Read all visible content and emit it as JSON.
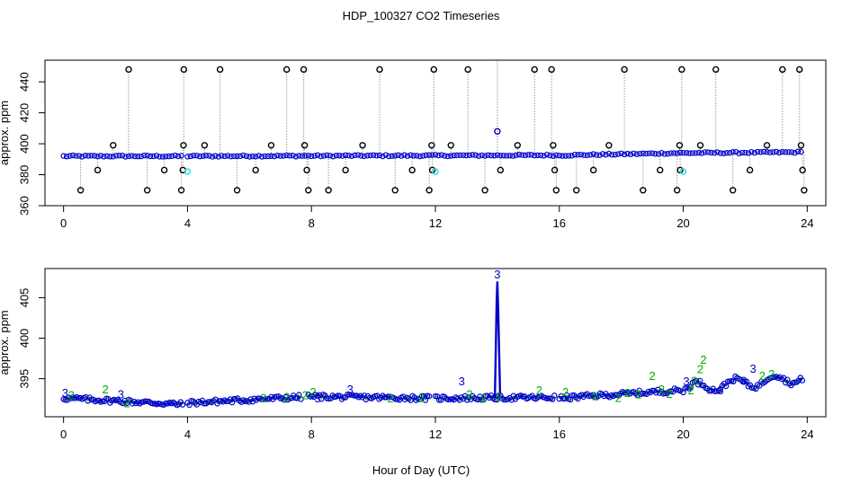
{
  "figure": {
    "title": "HDP_100327  CO2 Timeseries",
    "xlabel": "Hour of Day (UTC)"
  },
  "colors": {
    "axis": "#000000",
    "primary": "#0000cc",
    "outlier": "#000000",
    "cyan": "#22dddd",
    "green": "#00aa00",
    "gray": "#9a9a9a"
  },
  "chart_data": [
    {
      "id": "top",
      "type": "scatter",
      "title": "",
      "xlabel": "",
      "ylabel": "approx. ppm",
      "xlim": [
        -0.6,
        24.6
      ],
      "ylim": [
        360,
        454
      ],
      "xticks": [
        0,
        4,
        8,
        12,
        16,
        20,
        24
      ],
      "yticks": [
        360,
        380,
        400,
        420,
        440
      ],
      "series": [
        {
          "name": "baseline",
          "color": "blue",
          "segments": [
            {
              "start": 0.0,
              "end": 3.85,
              "value": 392,
              "slope": 0
            },
            {
              "start": 4.0,
              "end": 15.9,
              "value": 392,
              "slope": 0.05
            },
            {
              "start": 16.0,
              "end": 19.9,
              "value": 392.5,
              "slope": 0.4
            },
            {
              "start": 20.0,
              "end": 23.85,
              "value": 394,
              "slope": 0.15
            }
          ]
        },
        {
          "name": "outliers",
          "color": "black",
          "points": [
            [
              0.55,
              370
            ],
            [
              1.1,
              383
            ],
            [
              1.6,
              399
            ],
            [
              2.1,
              448
            ],
            [
              2.7,
              370
            ],
            [
              3.25,
              383
            ],
            [
              3.8,
              370
            ],
            [
              3.85,
              383
            ],
            [
              3.87,
              399
            ],
            [
              3.88,
              448
            ],
            [
              4.55,
              399
            ],
            [
              5.05,
              448
            ],
            [
              5.6,
              370
            ],
            [
              6.2,
              383
            ],
            [
              6.7,
              399
            ],
            [
              7.2,
              448
            ],
            [
              7.75,
              448
            ],
            [
              7.78,
              399
            ],
            [
              7.85,
              383
            ],
            [
              7.9,
              370
            ],
            [
              8.55,
              370
            ],
            [
              9.1,
              383
            ],
            [
              9.65,
              399
            ],
            [
              10.2,
              448
            ],
            [
              10.7,
              370
            ],
            [
              11.25,
              383
            ],
            [
              11.8,
              370
            ],
            [
              11.88,
              399
            ],
            [
              11.9,
              383
            ],
            [
              11.95,
              448
            ],
            [
              12.5,
              399
            ],
            [
              13.05,
              448
            ],
            [
              13.6,
              370
            ],
            [
              14.1,
              383
            ],
            [
              14.65,
              399
            ],
            [
              15.2,
              448
            ],
            [
              15.75,
              448
            ],
            [
              15.8,
              399
            ],
            [
              15.85,
              383
            ],
            [
              15.9,
              370
            ],
            [
              16.55,
              370
            ],
            [
              17.1,
              383
            ],
            [
              17.6,
              399
            ],
            [
              18.1,
              448
            ],
            [
              18.7,
              370
            ],
            [
              19.25,
              383
            ],
            [
              19.8,
              370
            ],
            [
              19.88,
              399
            ],
            [
              19.9,
              383
            ],
            [
              19.95,
              448
            ],
            [
              20.55,
              399
            ],
            [
              21.05,
              448
            ],
            [
              21.6,
              370
            ],
            [
              22.15,
              383
            ],
            [
              22.7,
              399
            ],
            [
              23.2,
              448
            ],
            [
              23.75,
              448
            ],
            [
              23.8,
              399
            ],
            [
              23.85,
              383
            ],
            [
              23.9,
              370
            ]
          ]
        },
        {
          "name": "cyan",
          "color": "cyan",
          "points": [
            [
              4.0,
              382
            ],
            [
              12.0,
              382
            ],
            [
              20.0,
              382
            ]
          ]
        },
        {
          "name": "spike",
          "color": "blue",
          "points": [
            [
              14.0,
              408
            ]
          ]
        }
      ]
    },
    {
      "id": "bottom",
      "type": "scatter",
      "title": "",
      "xlabel": "Hour of Day (UTC)",
      "ylabel": "approx. ppm",
      "xlim": [
        -0.6,
        24.6
      ],
      "ylim": [
        390.3,
        408.6
      ],
      "xticks": [
        0,
        4,
        8,
        12,
        16,
        20,
        24
      ],
      "yticks": [
        395,
        400,
        405
      ],
      "series": [
        {
          "name": "co2",
          "color": "blue",
          "segments": [
            {
              "start": 0.0,
              "end": 3.85,
              "value": 392.6,
              "slope": -0.2
            },
            {
              "start": 4.0,
              "end": 7.7,
              "value": 392.0,
              "slope": 0.2
            },
            {
              "start": 7.9,
              "end": 11.85,
              "value": 392.8,
              "slope": -0.05
            },
            {
              "start": 12.0,
              "end": 15.85,
              "value": 392.6,
              "slope": 0.02
            },
            {
              "start": 16.0,
              "end": 19.9,
              "value": 392.6,
              "slope": 0.25
            },
            {
              "start": 20.0,
              "end": 23.85,
              "value": 393.8,
              "slope": 0.35
            }
          ],
          "spike": {
            "x": 14.0,
            "value": 407.0
          }
        },
        {
          "name": "flag labels",
          "points": [
            {
              "x": 0.05,
              "y": 393.2,
              "text": "3",
              "color": "blue"
            },
            {
              "x": 0.25,
              "y": 392.9,
              "text": "2",
              "color": "green"
            },
            {
              "x": 1.35,
              "y": 393.6,
              "text": "2",
              "color": "green"
            },
            {
              "x": 1.85,
              "y": 393.0,
              "text": "3",
              "color": "blue"
            },
            {
              "x": 2.05,
              "y": 391.9,
              "text": "2",
              "color": "green"
            },
            {
              "x": 6.45,
              "y": 392.6,
              "text": "2",
              "color": "green"
            },
            {
              "x": 7.2,
              "y": 392.7,
              "text": "2",
              "color": "green"
            },
            {
              "x": 7.8,
              "y": 392.9,
              "text": "2",
              "color": "green"
            },
            {
              "x": 8.05,
              "y": 393.3,
              "text": "2",
              "color": "green"
            },
            {
              "x": 8.2,
              "y": 392.5,
              "text": "3",
              "color": "blue"
            },
            {
              "x": 9.25,
              "y": 393.6,
              "text": "3",
              "color": "blue"
            },
            {
              "x": 10.55,
              "y": 392.5,
              "text": "2",
              "color": "green"
            },
            {
              "x": 11.55,
              "y": 392.6,
              "text": "2",
              "color": "green"
            },
            {
              "x": 12.85,
              "y": 394.6,
              "text": "3",
              "color": "blue"
            },
            {
              "x": 13.1,
              "y": 393.0,
              "text": "2",
              "color": "green"
            },
            {
              "x": 13.55,
              "y": 392.6,
              "text": "2",
              "color": "green"
            },
            {
              "x": 14.0,
              "y": 407.8,
              "text": "3",
              "color": "blue"
            },
            {
              "x": 14.05,
              "y": 392.7,
              "text": "2",
              "color": "green"
            },
            {
              "x": 15.35,
              "y": 393.5,
              "text": "2",
              "color": "green"
            },
            {
              "x": 16.2,
              "y": 393.3,
              "text": "2",
              "color": "green"
            },
            {
              "x": 17.15,
              "y": 392.8,
              "text": "2",
              "color": "green"
            },
            {
              "x": 17.9,
              "y": 392.6,
              "text": "2",
              "color": "green"
            },
            {
              "x": 18.2,
              "y": 393.2,
              "text": "2",
              "color": "green"
            },
            {
              "x": 18.55,
              "y": 393.0,
              "text": "2",
              "color": "green"
            },
            {
              "x": 19.0,
              "y": 395.3,
              "text": "2",
              "color": "green"
            },
            {
              "x": 19.3,
              "y": 393.6,
              "text": "2",
              "color": "green"
            },
            {
              "x": 19.55,
              "y": 393.1,
              "text": "2",
              "color": "green"
            },
            {
              "x": 20.1,
              "y": 394.6,
              "text": "3",
              "color": "blue"
            },
            {
              "x": 20.25,
              "y": 393.5,
              "text": "2",
              "color": "green"
            },
            {
              "x": 20.35,
              "y": 394.7,
              "text": "2",
              "color": "green"
            },
            {
              "x": 20.55,
              "y": 396.1,
              "text": "2",
              "color": "green"
            },
            {
              "x": 20.65,
              "y": 397.3,
              "text": "2",
              "color": "green"
            },
            {
              "x": 21.2,
              "y": 393.5,
              "text": "3",
              "color": "blue"
            },
            {
              "x": 21.95,
              "y": 394.7,
              "text": "3",
              "color": "blue"
            },
            {
              "x": 22.25,
              "y": 396.2,
              "text": "3",
              "color": "blue"
            },
            {
              "x": 22.55,
              "y": 395.3,
              "text": "2",
              "color": "green"
            },
            {
              "x": 22.85,
              "y": 395.5,
              "text": "2",
              "color": "green"
            }
          ]
        }
      ]
    }
  ]
}
